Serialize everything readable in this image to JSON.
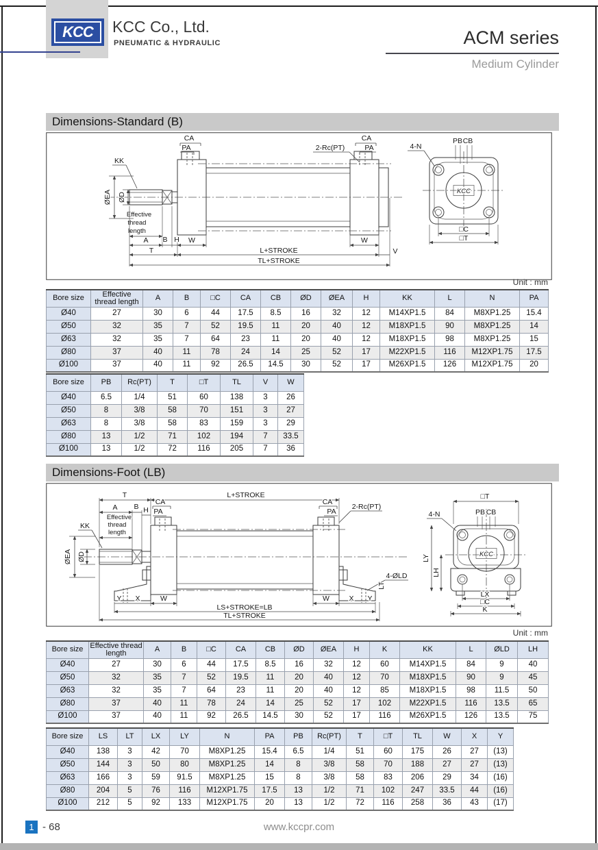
{
  "colors": {
    "logo_blue": "#2b4ea2",
    "badge_blue": "#1a73c0",
    "section_bar_gray": "#c9c9c9",
    "table_header_blue": "#dbe3f0"
  },
  "header": {
    "logo_text": "KCC",
    "company": "KCC Co., Ltd.",
    "tagline": "PNEUMATIC & HYDRAULIC",
    "series": "ACM series",
    "subtitle": "Medium Cylinder"
  },
  "footer": {
    "page_badge": "1",
    "page_number": "- 68",
    "website": "www.kccpr.com"
  },
  "unit_label": "Unit : mm",
  "dim": {
    "ca": "CA",
    "pa": "PA",
    "kk": "KK",
    "oea": "ØEA",
    "od": "ØD",
    "eff1": "Effective",
    "eff2": "thread",
    "eff3": "length",
    "a": "A",
    "b": "B",
    "h": "H",
    "w": "W",
    "t": "T",
    "v": "V",
    "l_stroke": "L+STROKE",
    "tl_stroke": "TL+STROKE",
    "rc2": "2-Rc(PT)",
    "n4": "4-N",
    "pb": "PB",
    "cb": "CB",
    "sqc": "□C",
    "sqt": "□T",
    "x": "X",
    "y": "Y",
    "k": "K",
    "lx": "LX",
    "ly": "LY",
    "lh": "LH",
    "lt": "LT",
    "ls_lb": "LS+STROKE=LB",
    "old4": "4-ØLD",
    "logo": "KCC"
  },
  "section_standard": {
    "title": "Dimensions-Standard (B)",
    "table1": {
      "headers": [
        "Bore size",
        "Effective thread length",
        "A",
        "B",
        "□C",
        "CA",
        "CB",
        "ØD",
        "ØEA",
        "H",
        "KK",
        "L",
        "N",
        "PA"
      ],
      "rows": [
        [
          "Ø40",
          "27",
          "30",
          "6",
          "44",
          "17.5",
          "8.5",
          "16",
          "32",
          "12",
          "M14XP1.5",
          "84",
          "M8XP1.25",
          "15.4"
        ],
        [
          "Ø50",
          "32",
          "35",
          "7",
          "52",
          "19.5",
          "11",
          "20",
          "40",
          "12",
          "M18XP1.5",
          "90",
          "M8XP1.25",
          "14"
        ],
        [
          "Ø63",
          "32",
          "35",
          "7",
          "64",
          "23",
          "11",
          "20",
          "40",
          "12",
          "M18XP1.5",
          "98",
          "M8XP1.25",
          "15"
        ],
        [
          "Ø80",
          "37",
          "40",
          "11",
          "78",
          "24",
          "14",
          "25",
          "52",
          "17",
          "M22XP1.5",
          "116",
          "M12XP1.75",
          "17.5"
        ],
        [
          "Ø100",
          "37",
          "40",
          "11",
          "92",
          "26.5",
          "14.5",
          "30",
          "52",
          "17",
          "M26XP1.5",
          "126",
          "M12XP1.75",
          "20"
        ]
      ]
    },
    "table2": {
      "headers": [
        "Bore size",
        "PB",
        "Rc(PT)",
        "T",
        "□T",
        "TL",
        "V",
        "W"
      ],
      "rows": [
        [
          "Ø40",
          "6.5",
          "1/4",
          "51",
          "60",
          "138",
          "3",
          "26"
        ],
        [
          "Ø50",
          "8",
          "3/8",
          "58",
          "70",
          "151",
          "3",
          "27"
        ],
        [
          "Ø63",
          "8",
          "3/8",
          "58",
          "83",
          "159",
          "3",
          "29"
        ],
        [
          "Ø80",
          "13",
          "1/2",
          "71",
          "102",
          "194",
          "7",
          "33.5"
        ],
        [
          "Ø100",
          "13",
          "1/2",
          "72",
          "116",
          "205",
          "7",
          "36"
        ]
      ]
    }
  },
  "section_foot": {
    "title": "Dimensions-Foot (LB)",
    "table1": {
      "headers": [
        "Bore size",
        "Effective thread length",
        "A",
        "B",
        "□C",
        "CA",
        "CB",
        "ØD",
        "ØEA",
        "H",
        "K",
        "KK",
        "L",
        "ØLD",
        "LH"
      ],
      "rows": [
        [
          "Ø40",
          "27",
          "30",
          "6",
          "44",
          "17.5",
          "8.5",
          "16",
          "32",
          "12",
          "60",
          "M14XP1.5",
          "84",
          "9",
          "40"
        ],
        [
          "Ø50",
          "32",
          "35",
          "7",
          "52",
          "19.5",
          "11",
          "20",
          "40",
          "12",
          "70",
          "M18XP1.5",
          "90",
          "9",
          "45"
        ],
        [
          "Ø63",
          "32",
          "35",
          "7",
          "64",
          "23",
          "11",
          "20",
          "40",
          "12",
          "85",
          "M18XP1.5",
          "98",
          "11.5",
          "50"
        ],
        [
          "Ø80",
          "37",
          "40",
          "11",
          "78",
          "24",
          "14",
          "25",
          "52",
          "17",
          "102",
          "M22XP1.5",
          "116",
          "13.5",
          "65"
        ],
        [
          "Ø100",
          "37",
          "40",
          "11",
          "92",
          "26.5",
          "14.5",
          "30",
          "52",
          "17",
          "116",
          "M26XP1.5",
          "126",
          "13.5",
          "75"
        ]
      ]
    },
    "table2": {
      "headers": [
        "Bore size",
        "LS",
        "LT",
        "LX",
        "LY",
        "N",
        "PA",
        "PB",
        "Rc(PT)",
        "T",
        "□T",
        "TL",
        "W",
        "X",
        "Y"
      ],
      "rows": [
        [
          "Ø40",
          "138",
          "3",
          "42",
          "70",
          "M8XP1.25",
          "15.4",
          "6.5",
          "1/4",
          "51",
          "60",
          "175",
          "26",
          "27",
          "(13)"
        ],
        [
          "Ø50",
          "144",
          "3",
          "50",
          "80",
          "M8XP1.25",
          "14",
          "8",
          "3/8",
          "58",
          "70",
          "188",
          "27",
          "27",
          "(13)"
        ],
        [
          "Ø63",
          "166",
          "3",
          "59",
          "91.5",
          "M8XP1.25",
          "15",
          "8",
          "3/8",
          "58",
          "83",
          "206",
          "29",
          "34",
          "(16)"
        ],
        [
          "Ø80",
          "204",
          "5",
          "76",
          "116",
          "M12XP1.75",
          "17.5",
          "13",
          "1/2",
          "71",
          "102",
          "247",
          "33.5",
          "44",
          "(16)"
        ],
        [
          "Ø100",
          "212",
          "5",
          "92",
          "133",
          "M12XP1.75",
          "20",
          "13",
          "1/2",
          "72",
          "116",
          "258",
          "36",
          "43",
          "(17)"
        ]
      ]
    }
  }
}
